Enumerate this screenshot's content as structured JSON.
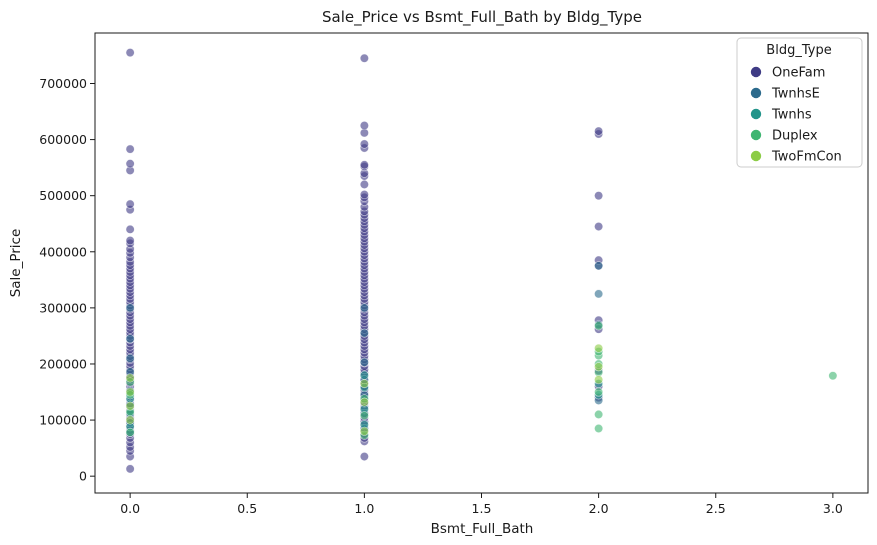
{
  "chart_data": {
    "type": "scatter",
    "title": "Sale_Price vs Bsmt_Full_Bath by Bldg_Type",
    "xlabel": "Bsmt_Full_Bath",
    "ylabel": "Sale_Price",
    "xlim": [
      -0.15,
      3.15
    ],
    "ylim": [
      -30000,
      790000
    ],
    "xticks": [
      0.0,
      0.5,
      1.0,
      1.5,
      2.0,
      2.5,
      3.0
    ],
    "xtick_labels": [
      "0.0",
      "0.5",
      "1.0",
      "1.5",
      "2.0",
      "2.5",
      "3.0"
    ],
    "yticks": [
      0,
      100000,
      200000,
      300000,
      400000,
      500000,
      600000,
      700000
    ],
    "ytick_labels": [
      "0",
      "100000",
      "200000",
      "300000",
      "400000",
      "500000",
      "600000",
      "700000"
    ],
    "grid": false,
    "legend": {
      "title": "Bldg_Type",
      "placement": "top-right"
    },
    "marker_alpha": 0.6,
    "series": [
      {
        "name": "OneFam",
        "color": "#3f3b85",
        "points": [
          [
            0,
            13000
          ],
          [
            0,
            35000
          ],
          [
            0,
            45000
          ],
          [
            0,
            52000
          ],
          [
            0,
            60000
          ],
          [
            0,
            68000
          ],
          [
            0,
            75000
          ],
          [
            0,
            82000
          ],
          [
            0,
            90000
          ],
          [
            0,
            97000
          ],
          [
            0,
            104000
          ],
          [
            0,
            110000
          ],
          [
            0,
            118000
          ],
          [
            0,
            124000
          ],
          [
            0,
            130000
          ],
          [
            0,
            136000
          ],
          [
            0,
            142000
          ],
          [
            0,
            148000
          ],
          [
            0,
            154000
          ],
          [
            0,
            160000
          ],
          [
            0,
            166000
          ],
          [
            0,
            172000
          ],
          [
            0,
            178000
          ],
          [
            0,
            184000
          ],
          [
            0,
            190000
          ],
          [
            0,
            196000
          ],
          [
            0,
            202000
          ],
          [
            0,
            208000
          ],
          [
            0,
            214000
          ],
          [
            0,
            220000
          ],
          [
            0,
            226000
          ],
          [
            0,
            232000
          ],
          [
            0,
            238000
          ],
          [
            0,
            244000
          ],
          [
            0,
            250000
          ],
          [
            0,
            256000
          ],
          [
            0,
            262000
          ],
          [
            0,
            268000
          ],
          [
            0,
            274000
          ],
          [
            0,
            280000
          ],
          [
            0,
            286000
          ],
          [
            0,
            292000
          ],
          [
            0,
            298000
          ],
          [
            0,
            304000
          ],
          [
            0,
            310000
          ],
          [
            0,
            316000
          ],
          [
            0,
            322000
          ],
          [
            0,
            328000
          ],
          [
            0,
            334000
          ],
          [
            0,
            340000
          ],
          [
            0,
            346000
          ],
          [
            0,
            352000
          ],
          [
            0,
            358000
          ],
          [
            0,
            364000
          ],
          [
            0,
            370000
          ],
          [
            0,
            376000
          ],
          [
            0,
            382000
          ],
          [
            0,
            390000
          ],
          [
            0,
            398000
          ],
          [
            0,
            405000
          ],
          [
            0,
            415000
          ],
          [
            0,
            420000
          ],
          [
            0,
            440000
          ],
          [
            0,
            475000
          ],
          [
            0,
            485000
          ],
          [
            0,
            545000
          ],
          [
            0,
            557000
          ],
          [
            0,
            583000
          ],
          [
            0,
            755000
          ],
          [
            1,
            35000
          ],
          [
            1,
            62000
          ],
          [
            1,
            68000
          ],
          [
            1,
            75000
          ],
          [
            1,
            82000
          ],
          [
            1,
            90000
          ],
          [
            1,
            97000
          ],
          [
            1,
            104000
          ],
          [
            1,
            110000
          ],
          [
            1,
            118000
          ],
          [
            1,
            124000
          ],
          [
            1,
            130000
          ],
          [
            1,
            136000
          ],
          [
            1,
            142000
          ],
          [
            1,
            148000
          ],
          [
            1,
            154000
          ],
          [
            1,
            160000
          ],
          [
            1,
            166000
          ],
          [
            1,
            172000
          ],
          [
            1,
            178000
          ],
          [
            1,
            184000
          ],
          [
            1,
            190000
          ],
          [
            1,
            196000
          ],
          [
            1,
            202000
          ],
          [
            1,
            208000
          ],
          [
            1,
            214000
          ],
          [
            1,
            220000
          ],
          [
            1,
            226000
          ],
          [
            1,
            232000
          ],
          [
            1,
            238000
          ],
          [
            1,
            244000
          ],
          [
            1,
            250000
          ],
          [
            1,
            256000
          ],
          [
            1,
            262000
          ],
          [
            1,
            268000
          ],
          [
            1,
            274000
          ],
          [
            1,
            280000
          ],
          [
            1,
            286000
          ],
          [
            1,
            292000
          ],
          [
            1,
            298000
          ],
          [
            1,
            304000
          ],
          [
            1,
            310000
          ],
          [
            1,
            316000
          ],
          [
            1,
            322000
          ],
          [
            1,
            328000
          ],
          [
            1,
            334000
          ],
          [
            1,
            340000
          ],
          [
            1,
            346000
          ],
          [
            1,
            352000
          ],
          [
            1,
            358000
          ],
          [
            1,
            364000
          ],
          [
            1,
            370000
          ],
          [
            1,
            376000
          ],
          [
            1,
            382000
          ],
          [
            1,
            388000
          ],
          [
            1,
            394000
          ],
          [
            1,
            400000
          ],
          [
            1,
            406000
          ],
          [
            1,
            412000
          ],
          [
            1,
            418000
          ],
          [
            1,
            424000
          ],
          [
            1,
            430000
          ],
          [
            1,
            436000
          ],
          [
            1,
            442000
          ],
          [
            1,
            448000
          ],
          [
            1,
            454000
          ],
          [
            1,
            460000
          ],
          [
            1,
            466000
          ],
          [
            1,
            472000
          ],
          [
            1,
            480000
          ],
          [
            1,
            490000
          ],
          [
            1,
            497000
          ],
          [
            1,
            502000
          ],
          [
            1,
            520000
          ],
          [
            1,
            535000
          ],
          [
            1,
            540000
          ],
          [
            1,
            552000
          ],
          [
            1,
            555000
          ],
          [
            1,
            585000
          ],
          [
            1,
            592000
          ],
          [
            1,
            612000
          ],
          [
            1,
            625000
          ],
          [
            1,
            745000
          ],
          [
            2,
            140000
          ],
          [
            2,
            160000
          ],
          [
            2,
            188000
          ],
          [
            2,
            262000
          ],
          [
            2,
            278000
          ],
          [
            2,
            375000
          ],
          [
            2,
            385000
          ],
          [
            2,
            445000
          ],
          [
            2,
            500000
          ],
          [
            2,
            610000
          ],
          [
            2,
            615000
          ]
        ]
      },
      {
        "name": "TwnhsE",
        "color": "#2c6a8c",
        "points": [
          [
            0,
            78000
          ],
          [
            0,
            95000
          ],
          [
            0,
            128000
          ],
          [
            0,
            152000
          ],
          [
            0,
            186000
          ],
          [
            0,
            210000
          ],
          [
            0,
            245000
          ],
          [
            0,
            300000
          ],
          [
            1,
            85000
          ],
          [
            1,
            112000
          ],
          [
            1,
            145000
          ],
          [
            1,
            172000
          ],
          [
            1,
            203000
          ],
          [
            1,
            255000
          ],
          [
            1,
            300000
          ],
          [
            2,
            135000
          ],
          [
            2,
            270000
          ],
          [
            2,
            325000
          ],
          [
            2,
            375000
          ]
        ]
      },
      {
        "name": "Twnhs",
        "color": "#22948a",
        "points": [
          [
            0,
            88000
          ],
          [
            0,
            112000
          ],
          [
            0,
            138000
          ],
          [
            0,
            148000
          ],
          [
            1,
            92000
          ],
          [
            1,
            120000
          ],
          [
            1,
            158000
          ],
          [
            1,
            180000
          ],
          [
            2,
            145000
          ],
          [
            2,
            165000
          ]
        ]
      },
      {
        "name": "Duplex",
        "color": "#3fb571",
        "points": [
          [
            0,
            78000
          ],
          [
            0,
            115000
          ],
          [
            0,
            145000
          ],
          [
            0,
            168000
          ],
          [
            1,
            73000
          ],
          [
            1,
            108000
          ],
          [
            1,
            138000
          ],
          [
            2,
            85000
          ],
          [
            2,
            110000
          ],
          [
            2,
            150000
          ],
          [
            2,
            185000
          ],
          [
            2,
            200000
          ],
          [
            2,
            215000
          ],
          [
            2,
            222000
          ],
          [
            2,
            268000
          ],
          [
            3,
            179000
          ]
        ]
      },
      {
        "name": "TwoFmCon",
        "color": "#8ccc46",
        "points": [
          [
            0,
            100000
          ],
          [
            0,
            125000
          ],
          [
            0,
            150000
          ],
          [
            0,
            175000
          ],
          [
            1,
            80000
          ],
          [
            1,
            132000
          ],
          [
            1,
            165000
          ],
          [
            2,
            172000
          ],
          [
            2,
            195000
          ],
          [
            2,
            228000
          ]
        ]
      }
    ]
  }
}
